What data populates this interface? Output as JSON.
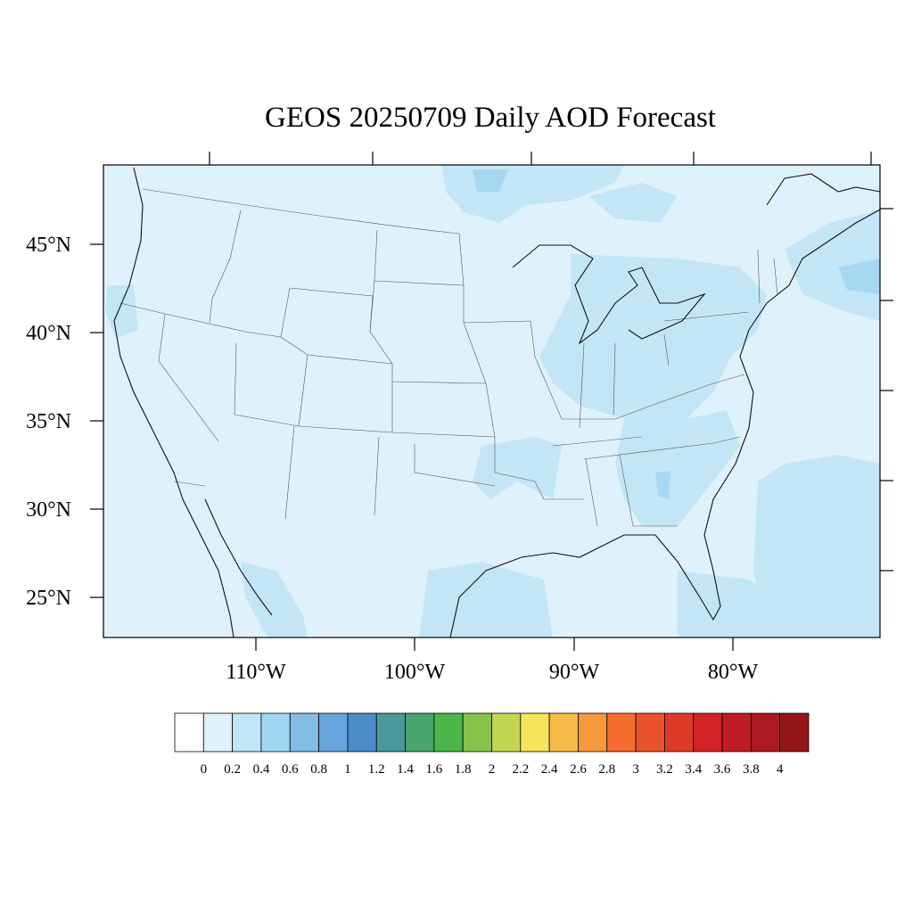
{
  "title": "GEOS 20250709 Daily AOD Forecast",
  "map": {
    "projection": "Lambert conformal",
    "background_color": "#dff2fb",
    "shade_colors": [
      "#dff2fb",
      "#c3e6f7",
      "#a6d8f2"
    ]
  },
  "axes": {
    "lon_labels": [
      "110°W",
      "100°W",
      "90°W",
      "80°W"
    ],
    "lat_labels": [
      "45°N",
      "40°N",
      "35°N",
      "30°N",
      "25°N"
    ]
  },
  "colorbar": {
    "colors": [
      "#ffffff",
      "#dff2fb",
      "#bfe6f8",
      "#a0d6f2",
      "#82bde6",
      "#66a6da",
      "#4a8bc8",
      "#4a9a9c",
      "#47a56e",
      "#4bb54a",
      "#86c34c",
      "#c2d654",
      "#f8e45a",
      "#f8bc48",
      "#f6983c",
      "#f46c2e",
      "#ea522c",
      "#de3a28",
      "#d22228",
      "#c01c24",
      "#aa1a20",
      "#951618"
    ],
    "labels": [
      "0",
      "0.2",
      "0.4",
      "0.6",
      "0.8",
      "1",
      "1.2",
      "1.4",
      "1.6",
      "1.8",
      "2",
      "2.2",
      "2.4",
      "2.6",
      "2.8",
      "3",
      "3.2",
      "3.4",
      "3.6",
      "3.8",
      "4"
    ]
  }
}
